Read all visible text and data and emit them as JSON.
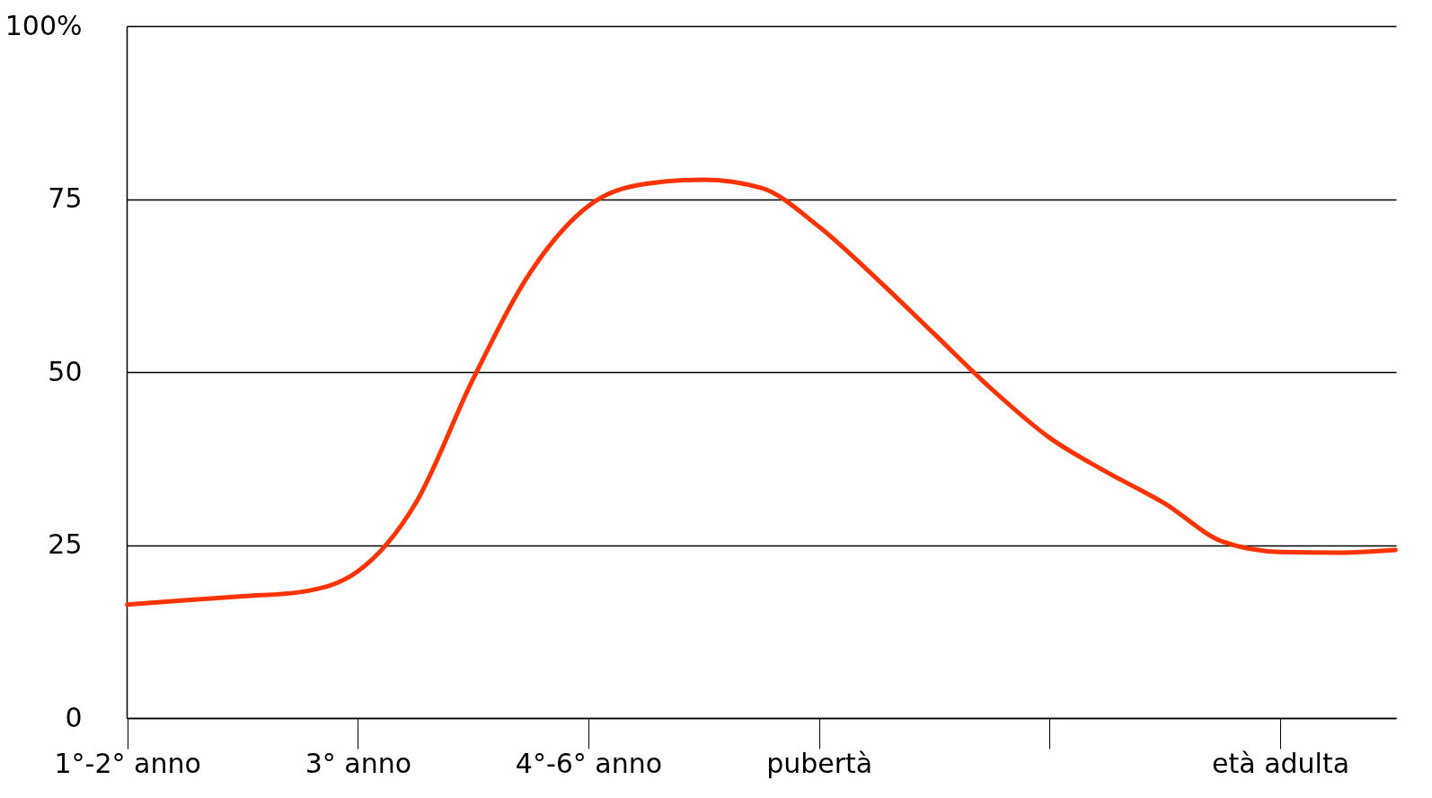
{
  "chart_data": {
    "type": "line",
    "categories": [
      "1°-2° anno",
      null,
      null,
      null,
      "3° anno",
      null,
      null,
      null,
      "4°-6° anno",
      null,
      null,
      null,
      "pubertà",
      null,
      null,
      null,
      null,
      null,
      null,
      null,
      "età adulta",
      null,
      null
    ],
    "series": [
      {
        "color": "#ff3300",
        "values": [
          16.4,
          17.0,
          17.6,
          18.2,
          21.2,
          31,
          49,
          64.5,
          74,
          77.2,
          77.8,
          76.6,
          71,
          63.5,
          55.5,
          47.5,
          40.5,
          35.5,
          31,
          25.5,
          24,
          23.9,
          24.3
        ]
      }
    ],
    "ylim": [
      0,
      100
    ],
    "yticks": [
      0,
      25,
      50,
      75,
      {
        "value": 100,
        "label": "100%"
      }
    ],
    "grid": "y",
    "line_style": "solid"
  }
}
